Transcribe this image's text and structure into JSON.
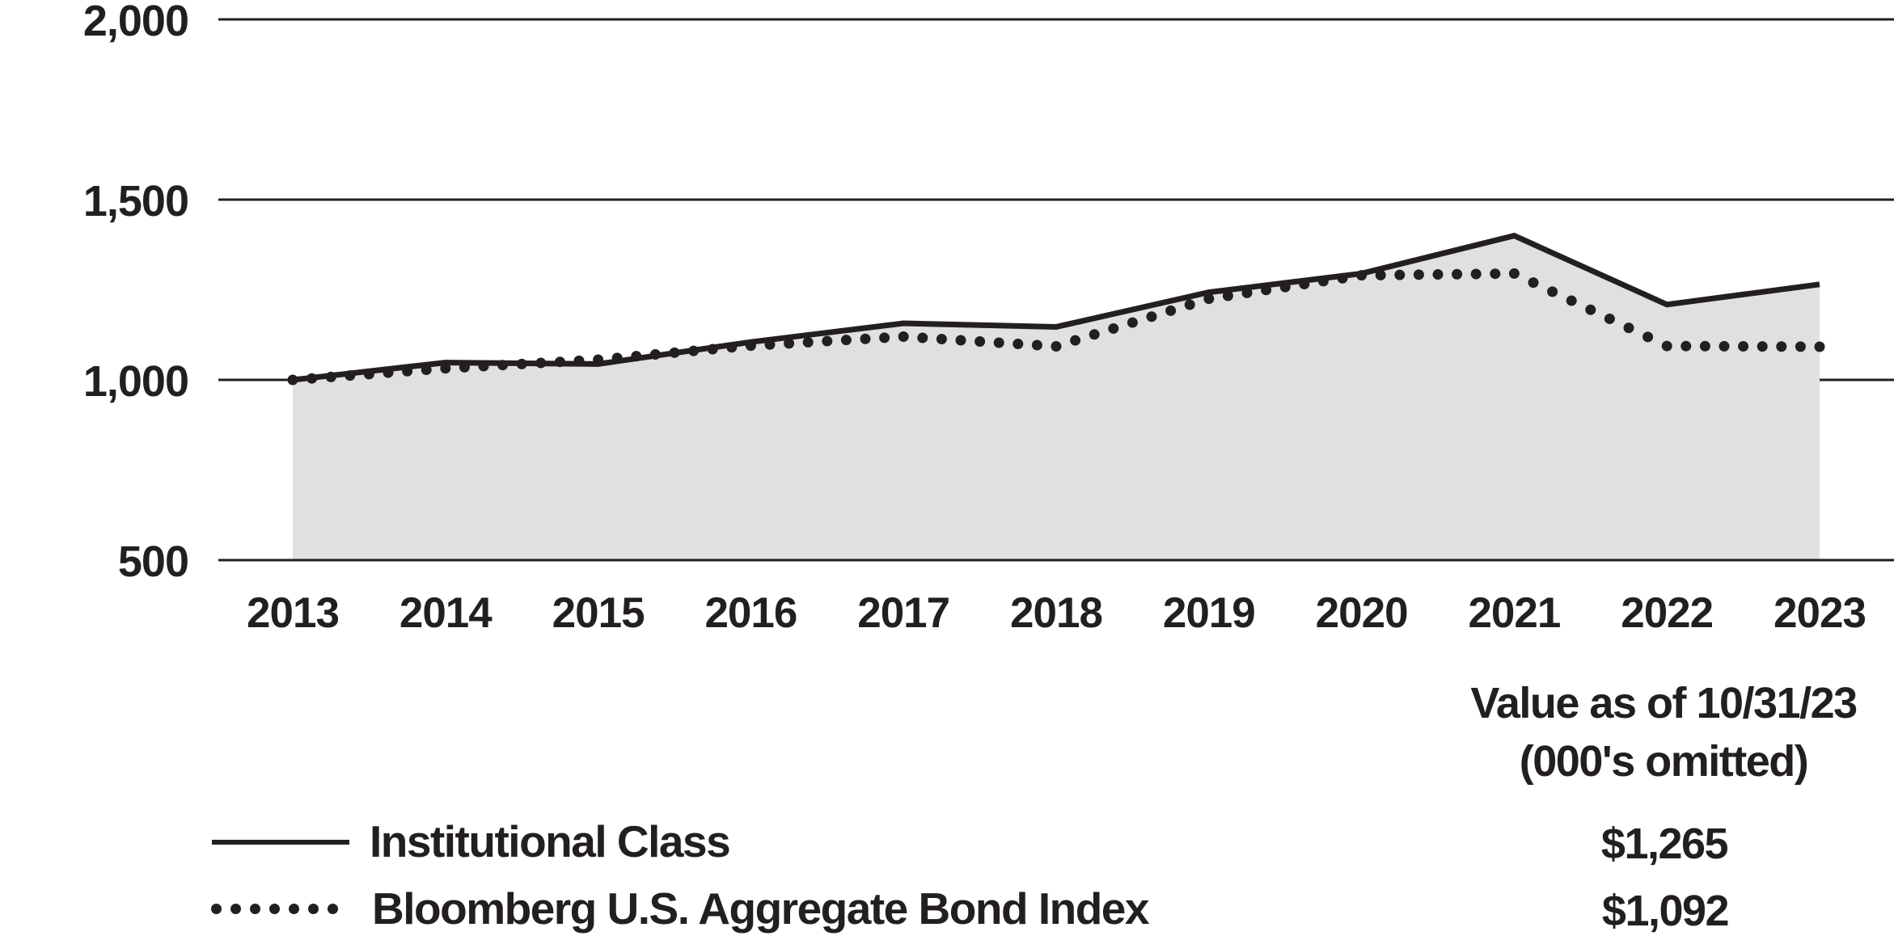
{
  "chart_data": {
    "type": "area",
    "title": "",
    "x": [
      "2013",
      "2014",
      "2015",
      "2016",
      "2017",
      "2018",
      "2019",
      "2020",
      "2021",
      "2022",
      "2023"
    ],
    "series": [
      {
        "name": "Institutional Class",
        "style": "solid-line-with-area-fill",
        "values": [
          1000,
          1048,
          1044,
          1105,
          1157,
          1147,
          1243,
          1295,
          1400,
          1209,
          1265
        ]
      },
      {
        "name": "Bloomberg U.S. Aggregate Bond Index",
        "style": "dotted-line",
        "values": [
          1000,
          1032,
          1056,
          1095,
          1120,
          1093,
          1225,
          1290,
          1295,
          1094,
          1092
        ]
      }
    ],
    "ylim": [
      500,
      2000
    ],
    "yticks": [
      {
        "value": 2000,
        "label": "2,000"
      },
      {
        "value": 1500,
        "label": "1,500"
      },
      {
        "value": 1000,
        "label": "1,000"
      },
      {
        "value": 500,
        "label": "500"
      }
    ],
    "grid": "horizontal-only",
    "legend_position": "bottom-left"
  },
  "value_column": {
    "header_line1": "Value as of 10/31/23",
    "header_line2": "(000's omitted)"
  },
  "legend": {
    "items": [
      {
        "label": "Institutional Class",
        "swatch": "solid-line",
        "value": "$1,265"
      },
      {
        "label": "Bloomberg U.S. Aggregate Bond Index",
        "swatch": "dotted-line",
        "value": "$1,092"
      }
    ]
  },
  "colors": {
    "ink": "#231f20",
    "area_fill": "#e0e0e0",
    "background": "#ffffff"
  }
}
